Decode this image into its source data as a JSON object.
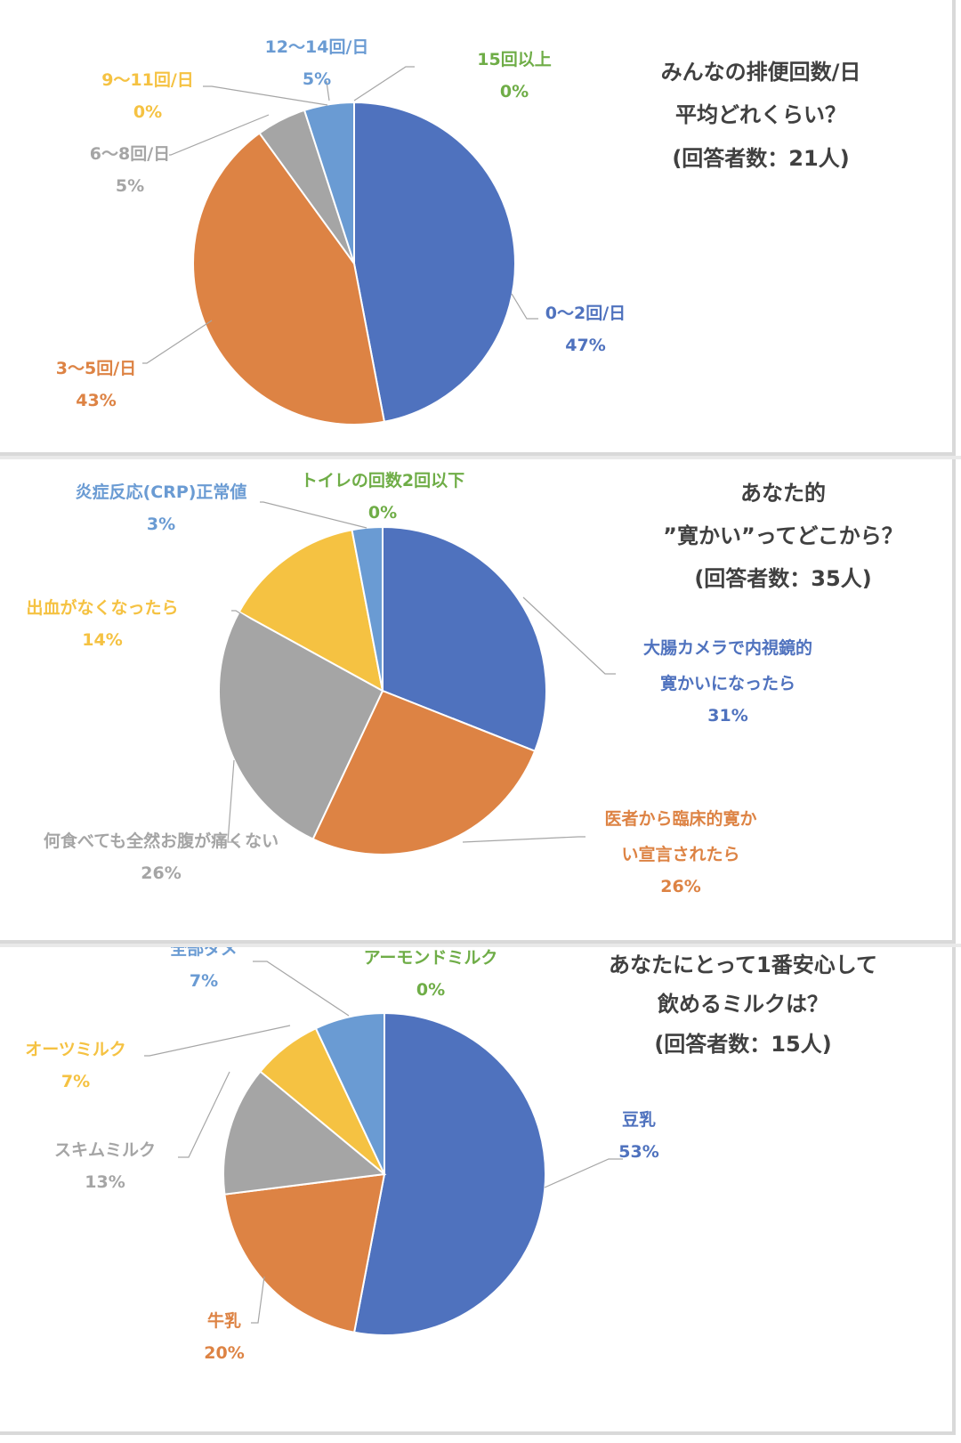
{
  "chart_data": [
    {
      "type": "pie",
      "title": [
        "みんなの排便回数/日",
        "平均どれくらい？",
        "(回答者数：21人)"
      ],
      "slices": [
        {
          "label": "0〜2回/日",
          "value": 47,
          "value_label": "47%",
          "color": "#4f72be"
        },
        {
          "label": "3〜5回/日",
          "value": 43,
          "value_label": "43%",
          "color": "#dd8344"
        },
        {
          "label": "6〜8回/日",
          "value": 5,
          "value_label": "5%",
          "color": "#a5a5a5"
        },
        {
          "label": "9〜11回/日",
          "value": 0,
          "value_label": "0%",
          "color": "#f5c242"
        },
        {
          "label": "12〜14回/日",
          "value": 5,
          "value_label": "5%",
          "color": "#6a9bd3"
        },
        {
          "label": "15回以上",
          "value": 0,
          "value_label": "0%",
          "color": "#6fad47"
        }
      ]
    },
    {
      "type": "pie",
      "title": [
        "あなた的",
        "”寛かい”ってどこから？",
        "(回答者数：35人)"
      ],
      "slices": [
        {
          "label": [
            "大腸カメラで内視鏡的",
            "寛かいになったら"
          ],
          "value": 31,
          "value_label": "31%",
          "color": "#4f72be"
        },
        {
          "label": [
            "医者から臨床的寛か",
            "い宣言されたら"
          ],
          "value": 26,
          "value_label": "26%",
          "color": "#dd8344"
        },
        {
          "label": [
            "何食べても全然お腹が痛くない"
          ],
          "value": 26,
          "value_label": "26%",
          "color": "#a5a5a5"
        },
        {
          "label": [
            "出血がなくなったら"
          ],
          "value": 14,
          "value_label": "14%",
          "color": "#f5c242"
        },
        {
          "label": [
            "炎症反応(CRP)正常値"
          ],
          "value": 3,
          "value_label": "3%",
          "color": "#6a9bd3"
        },
        {
          "label": [
            "トイレの回数2回以下"
          ],
          "value": 0,
          "value_label": "0%",
          "color": "#6fad47"
        }
      ]
    },
    {
      "type": "pie",
      "title": [
        "あなたにとって1番安心して",
        "飲めるミルクは？",
        "(回答者数：15人)"
      ],
      "slices": [
        {
          "label": "豆乳",
          "value": 53,
          "value_label": "53%",
          "color": "#4f72be"
        },
        {
          "label": "牛乳",
          "value": 20,
          "value_label": "20%",
          "color": "#dd8344"
        },
        {
          "label": "スキムミルク",
          "value": 13,
          "value_label": "13%",
          "color": "#a5a5a5"
        },
        {
          "label": "オーツミルク",
          "value": 7,
          "value_label": "7%",
          "color": "#f5c242"
        },
        {
          "label": "全部ダメ",
          "value": 7,
          "value_label": "7%",
          "color": "#6a9bd3"
        },
        {
          "label": "アーモンドミルク",
          "value": 0,
          "value_label": "0%",
          "color": "#6fad47"
        }
      ]
    }
  ]
}
